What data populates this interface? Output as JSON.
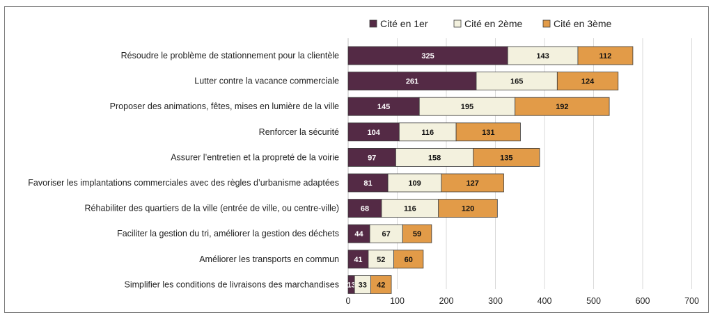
{
  "chart_data": {
    "type": "bar",
    "orientation": "horizontal",
    "stacked": true,
    "categories": [
      "Résoudre le problème de stationnement pour la clientèle",
      "Lutter contre la vacance commerciale",
      "Proposer des animations, fêtes, mises en lumière de la ville",
      "Renforcer la sécurité",
      "Assurer l’entretien et la propreté de la voirie",
      "Favoriser les implantations commerciales avec des règles d’urbanisme adaptées",
      "Réhabiliter des quartiers de la ville (entrée de ville, ou centre-ville)",
      "Faciliter la gestion du tri, améliorer la gestion des déchets",
      "Améliorer les transports en commun",
      "Simplifier les conditions de livraisons des marchandises"
    ],
    "series": [
      {
        "name": "Cité en 1er",
        "color": "#542a45",
        "label_color": "#ffffff",
        "values": [
          325,
          261,
          145,
          104,
          97,
          81,
          68,
          44,
          41,
          13
        ]
      },
      {
        "name": "Cité en 2ème",
        "color": "#f3f1de",
        "label_color": "#111111",
        "values": [
          143,
          165,
          195,
          116,
          158,
          109,
          116,
          67,
          52,
          33
        ]
      },
      {
        "name": "Cité en 3ème",
        "color": "#e29b48",
        "label_color": "#111111",
        "values": [
          112,
          124,
          192,
          131,
          135,
          127,
          120,
          59,
          60,
          42
        ]
      }
    ],
    "xlim": [
      0,
      700
    ],
    "xticks": [
      0,
      100,
      200,
      300,
      400,
      500,
      600,
      700
    ],
    "xgrid": true,
    "legend_position": "top-right"
  }
}
